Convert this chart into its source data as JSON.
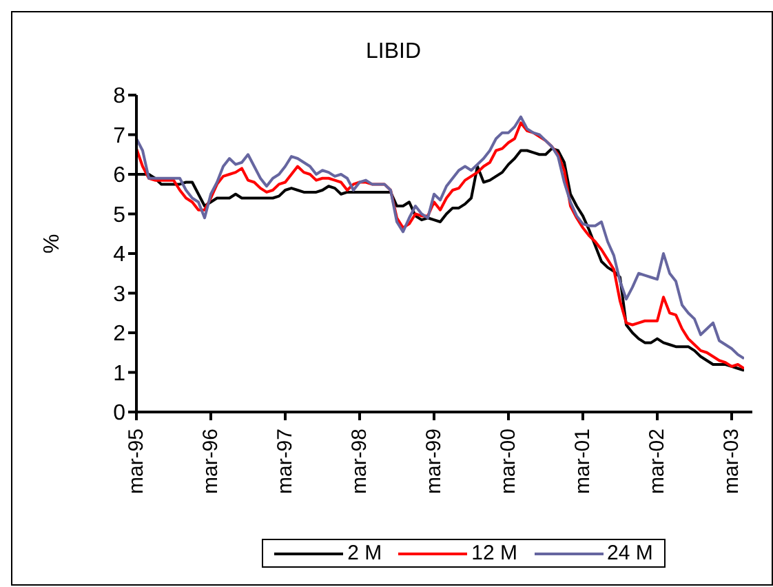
{
  "chart_data": {
    "type": "line",
    "title": "LIBID",
    "ylabel": "%",
    "categories": [
      "mar-95",
      null,
      null,
      null,
      null,
      null,
      null,
      null,
      null,
      null,
      null,
      null,
      "mar-96",
      null,
      null,
      null,
      null,
      null,
      null,
      null,
      null,
      null,
      null,
      null,
      "mar-97",
      null,
      null,
      null,
      null,
      null,
      null,
      null,
      null,
      null,
      null,
      null,
      "mar-98",
      null,
      null,
      null,
      null,
      null,
      null,
      null,
      null,
      null,
      null,
      null,
      "mar-99",
      null,
      null,
      null,
      null,
      null,
      null,
      null,
      null,
      null,
      null,
      null,
      "mar-00",
      null,
      null,
      null,
      null,
      null,
      null,
      null,
      null,
      null,
      null,
      null,
      "mar-01",
      null,
      null,
      null,
      null,
      null,
      null,
      null,
      null,
      null,
      null,
      null,
      "mar-02",
      null,
      null,
      null,
      null,
      null,
      null,
      null,
      null,
      null,
      null,
      null,
      "mar-03",
      null,
      null
    ],
    "series": [
      {
        "name": "2 M",
        "color": "#000000",
        "values": [
          6.0,
          6.0,
          6.0,
          5.9,
          5.75,
          5.75,
          5.75,
          5.75,
          5.8,
          5.8,
          5.5,
          5.2,
          5.3,
          5.4,
          5.4,
          5.4,
          5.5,
          5.4,
          5.4,
          5.4,
          5.4,
          5.4,
          5.4,
          5.45,
          5.6,
          5.65,
          5.6,
          5.55,
          5.55,
          5.55,
          5.6,
          5.7,
          5.65,
          5.5,
          5.55,
          5.55,
          5.55,
          5.55,
          5.55,
          5.55,
          5.55,
          5.55,
          5.2,
          5.2,
          5.3,
          4.95,
          4.85,
          4.9,
          4.85,
          4.8,
          5.0,
          5.15,
          5.15,
          5.25,
          5.4,
          6.2,
          5.8,
          5.85,
          5.95,
          6.05,
          6.25,
          6.4,
          6.6,
          6.6,
          6.55,
          6.5,
          6.5,
          6.65,
          6.6,
          6.3,
          5.5,
          5.2,
          4.95,
          4.6,
          4.2,
          3.8,
          3.65,
          3.55,
          3.4,
          2.2,
          2.0,
          1.85,
          1.75,
          1.75,
          1.85,
          1.75,
          1.7,
          1.65,
          1.65,
          1.65,
          1.55,
          1.4,
          1.3,
          1.2,
          1.2,
          1.2,
          1.15,
          1.1,
          1.05
        ]
      },
      {
        "name": "12 M",
        "color": "#ff0000",
        "values": [
          6.65,
          6.2,
          5.9,
          5.85,
          5.85,
          5.85,
          5.85,
          5.6,
          5.4,
          5.3,
          5.1,
          5.1,
          5.4,
          5.75,
          5.95,
          6.0,
          6.05,
          6.15,
          5.85,
          5.8,
          5.65,
          5.55,
          5.6,
          5.75,
          5.8,
          6.0,
          6.2,
          6.05,
          6.0,
          5.85,
          5.9,
          5.9,
          5.85,
          5.8,
          5.6,
          5.75,
          5.8,
          5.8,
          5.75,
          5.75,
          5.75,
          5.6,
          4.9,
          4.65,
          4.75,
          5.0,
          4.95,
          4.95,
          5.3,
          5.1,
          5.4,
          5.6,
          5.65,
          5.85,
          5.95,
          6.05,
          6.2,
          6.3,
          6.6,
          6.65,
          6.8,
          6.9,
          7.3,
          7.1,
          7.05,
          6.95,
          6.85,
          6.7,
          6.5,
          6.1,
          5.2,
          4.9,
          4.65,
          4.45,
          4.3,
          4.1,
          3.85,
          3.6,
          2.8,
          2.25,
          2.2,
          2.25,
          2.3,
          2.3,
          2.3,
          2.9,
          2.5,
          2.45,
          2.1,
          1.85,
          1.7,
          1.55,
          1.5,
          1.4,
          1.3,
          1.25,
          1.15,
          1.2,
          1.1
        ]
      },
      {
        "name": "24 M",
        "color": "#6666a0",
        "values": [
          6.9,
          6.6,
          5.9,
          5.9,
          5.9,
          5.9,
          5.9,
          5.9,
          5.6,
          5.4,
          5.3,
          4.9,
          5.5,
          5.8,
          6.2,
          6.4,
          6.25,
          6.3,
          6.5,
          6.2,
          5.9,
          5.7,
          5.9,
          6.0,
          6.2,
          6.45,
          6.4,
          6.3,
          6.2,
          6.0,
          6.1,
          6.05,
          5.95,
          6.0,
          5.9,
          5.6,
          5.8,
          5.85,
          5.75,
          5.75,
          5.75,
          5.6,
          4.8,
          4.55,
          4.9,
          5.2,
          5.0,
          4.9,
          5.5,
          5.35,
          5.7,
          5.9,
          6.1,
          6.2,
          6.1,
          6.25,
          6.4,
          6.6,
          6.9,
          7.05,
          7.05,
          7.2,
          7.45,
          7.15,
          7.05,
          7.0,
          6.85,
          6.7,
          6.45,
          5.8,
          5.3,
          4.95,
          4.75,
          4.7,
          4.7,
          4.8,
          4.3,
          3.95,
          3.3,
          2.85,
          3.15,
          3.5,
          3.45,
          3.4,
          3.35,
          4.0,
          3.5,
          3.3,
          2.7,
          2.5,
          2.35,
          1.95,
          2.1,
          2.25,
          1.8,
          1.7,
          1.6,
          1.45,
          1.35
        ]
      }
    ],
    "ylim": [
      0,
      8
    ],
    "yticks": [
      0,
      1,
      2,
      3,
      4,
      5,
      6,
      7,
      8
    ],
    "grid": false,
    "legend": "bottom",
    "marker": "none",
    "line_style": "solid"
  }
}
